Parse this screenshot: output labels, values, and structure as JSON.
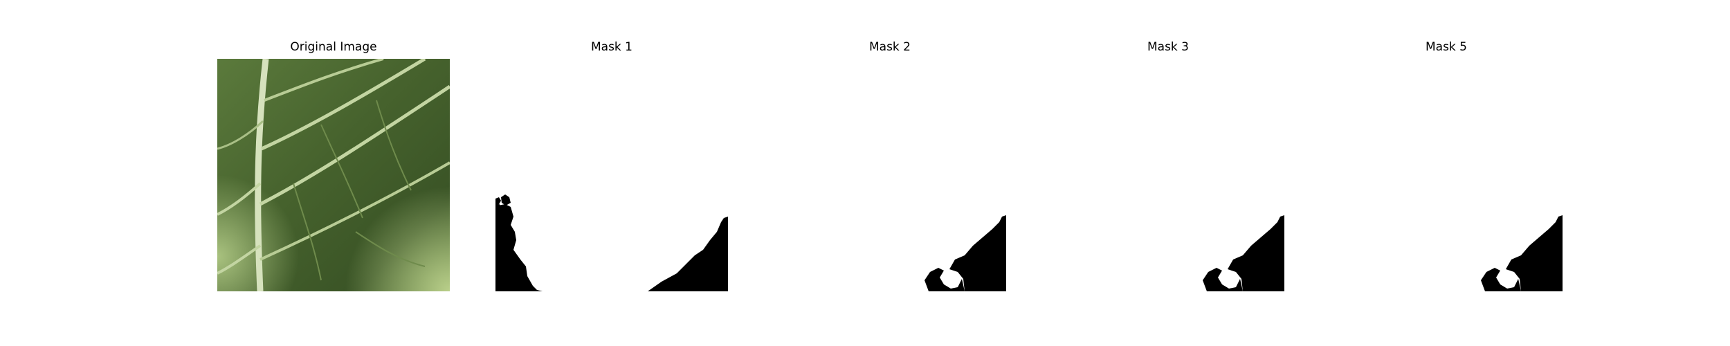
{
  "panels": [
    {
      "title": "Original Image",
      "content": "leaf-photo"
    },
    {
      "title": "Mask 1",
      "content": "mask"
    },
    {
      "title": "Mask 2",
      "content": "mask"
    },
    {
      "title": "Mask 3",
      "content": "mask"
    },
    {
      "title": "Mask 5",
      "content": "mask"
    }
  ],
  "colors": {
    "background": "#ffffff",
    "mask_fill": "#000000",
    "leaf_dark": "#3f5a2a",
    "leaf_mid": "#56743a",
    "vein": "#c9d8ae"
  }
}
